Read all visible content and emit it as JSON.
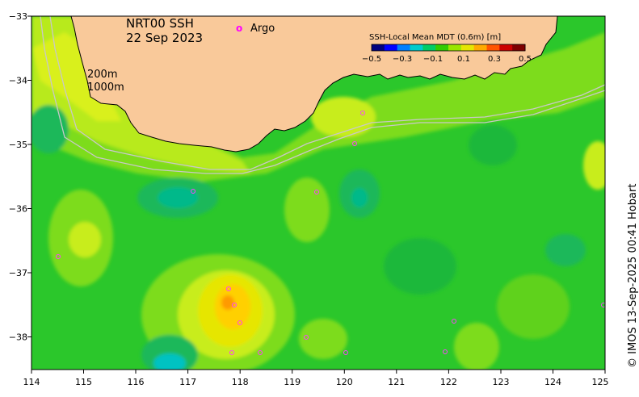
{
  "title": {
    "product": "NRT00 SSH",
    "date": "22 Sep 2023"
  },
  "argo_legend": {
    "symbol": "o",
    "label": "Argo"
  },
  "colorbar": {
    "title": "SSH-Local Mean MDT (0.6m) [m]",
    "ticks": [
      "−0.5",
      "−0.3",
      "−0.1",
      "0.1",
      "0.3",
      "0.5"
    ],
    "colors": [
      "#00007f",
      "#0000ff",
      "#007fff",
      "#00cccc",
      "#00cc66",
      "#33cc00",
      "#99e600",
      "#e6e600",
      "#ffaa00",
      "#ff5500",
      "#cc0000",
      "#7f0000"
    ]
  },
  "isobaths": {
    "shallow": "200m",
    "deep": "1000m"
  },
  "axes": {
    "x_ticks": [
      "114",
      "115",
      "116",
      "117",
      "118",
      "119",
      "120",
      "121",
      "122",
      "123",
      "124",
      "125"
    ],
    "y_ticks": [
      "−33",
      "−34",
      "−35",
      "−36",
      "−37",
      "−38"
    ]
  },
  "credit": "© IMOS 13-Sep-2025 00:41 Hobart",
  "colors": {
    "land": "#f9c99a",
    "ocean": "#22c522",
    "anomaly_high": "#ffd500",
    "anomaly_low": "#00c7a8",
    "isobath": "#c8c8c8",
    "argo": "#ff00ff"
  }
}
